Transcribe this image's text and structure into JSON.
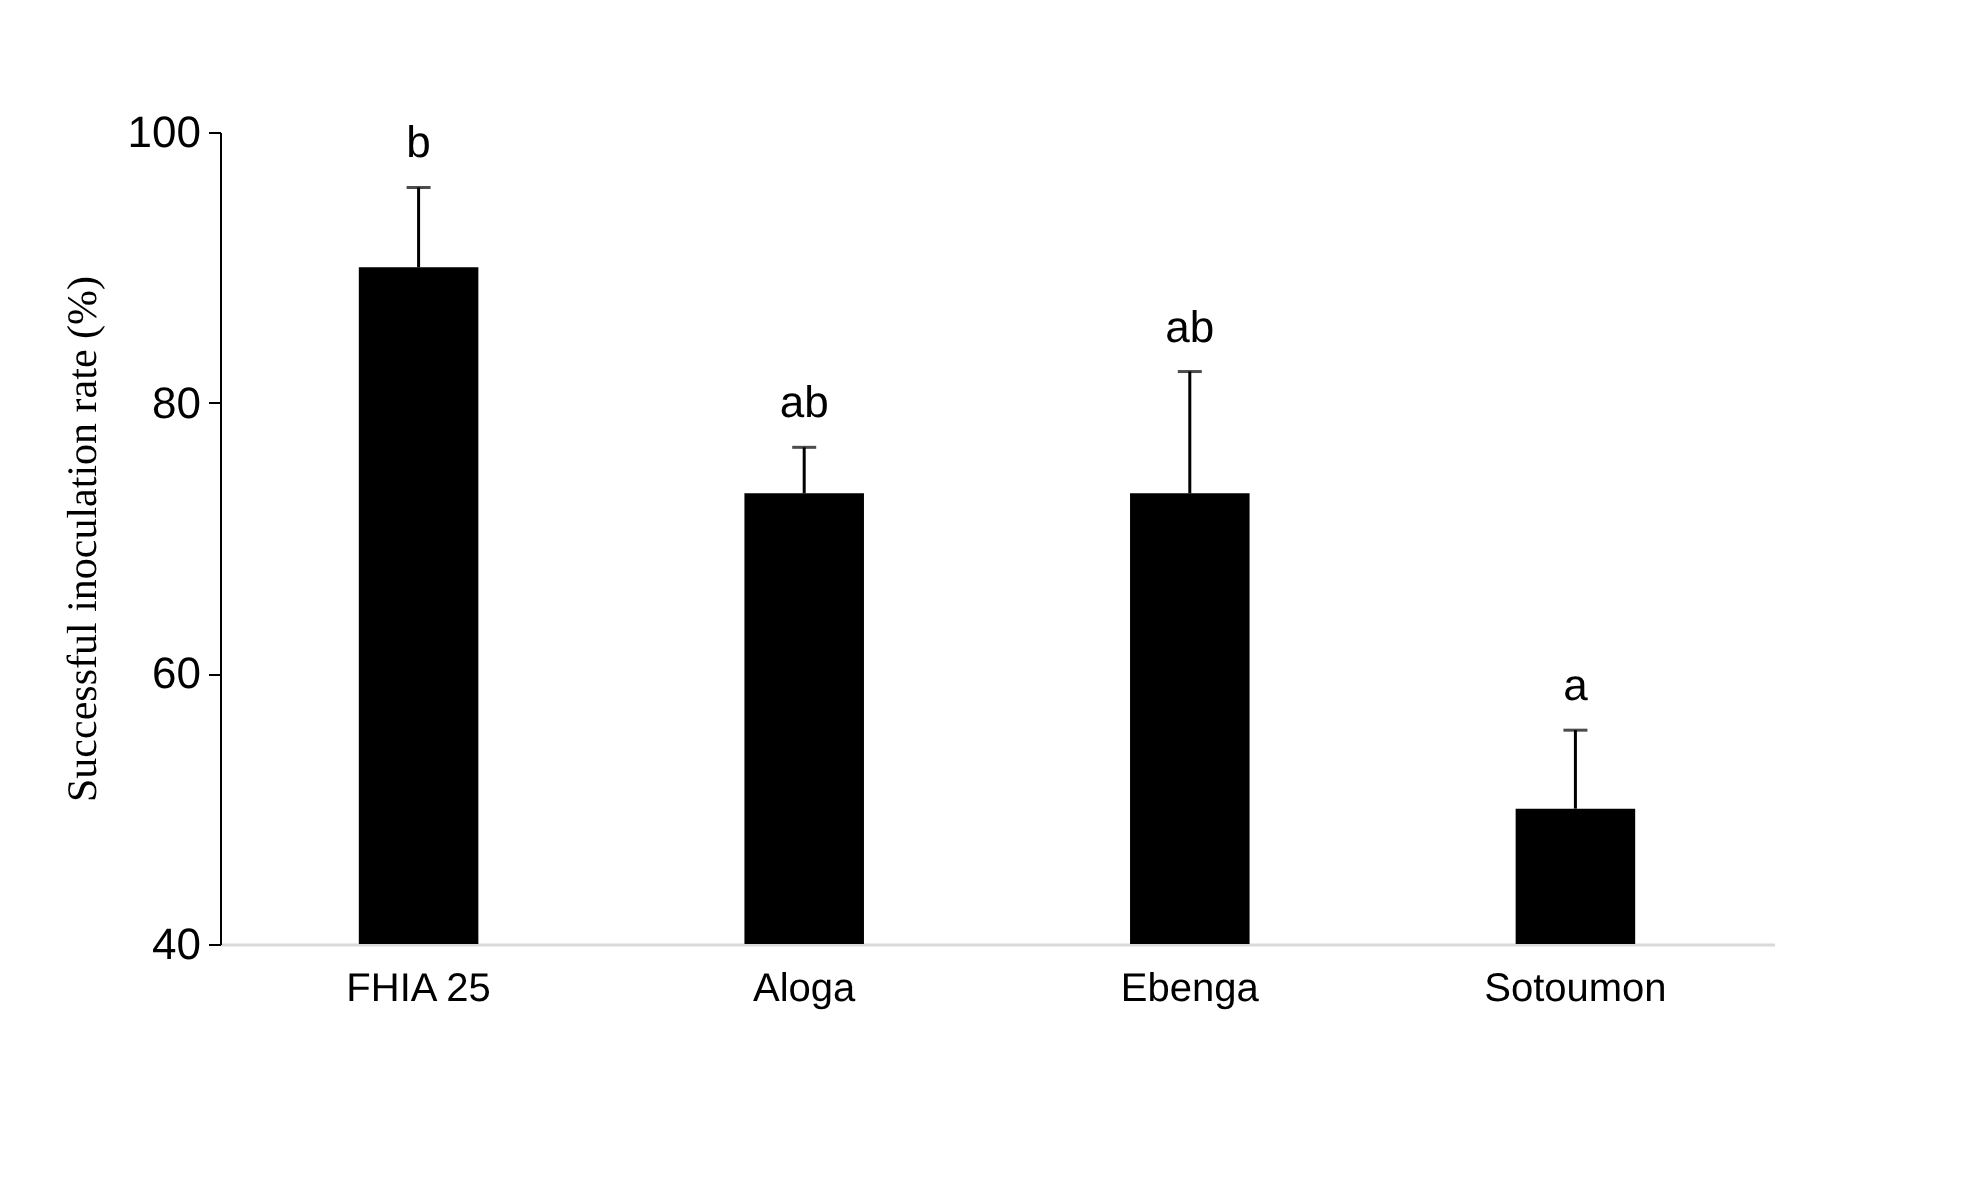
{
  "chart_data": {
    "type": "bar",
    "ylabel": "Successful inoculation rate (%)",
    "categories": [
      "FHIA 25",
      "Aloga",
      "Ebenga",
      "Sotoumon"
    ],
    "values": [
      90,
      73.3,
      73.3,
      50
    ],
    "color": "#000000",
    "errors": [
      [
        90,
        95.9
      ],
      [
        73.3,
        76.7
      ],
      [
        73.3,
        82.3
      ],
      [
        50,
        55.8
      ]
    ],
    "ylim": [
      40,
      100
    ],
    "yticks": [
      40,
      60,
      80,
      100
    ],
    "grid": false,
    "annotations": [
      {
        "text": "b",
        "x": "FHIA 25",
        "y": 95.9
      },
      {
        "text": "ab",
        "x": "Aloga",
        "y": 76.7
      },
      {
        "text": "ab",
        "x": "Ebenga",
        "y": 82.3
      },
      {
        "text": "a",
        "x": "Sotoumon",
        "y": 55.8
      }
    ]
  }
}
